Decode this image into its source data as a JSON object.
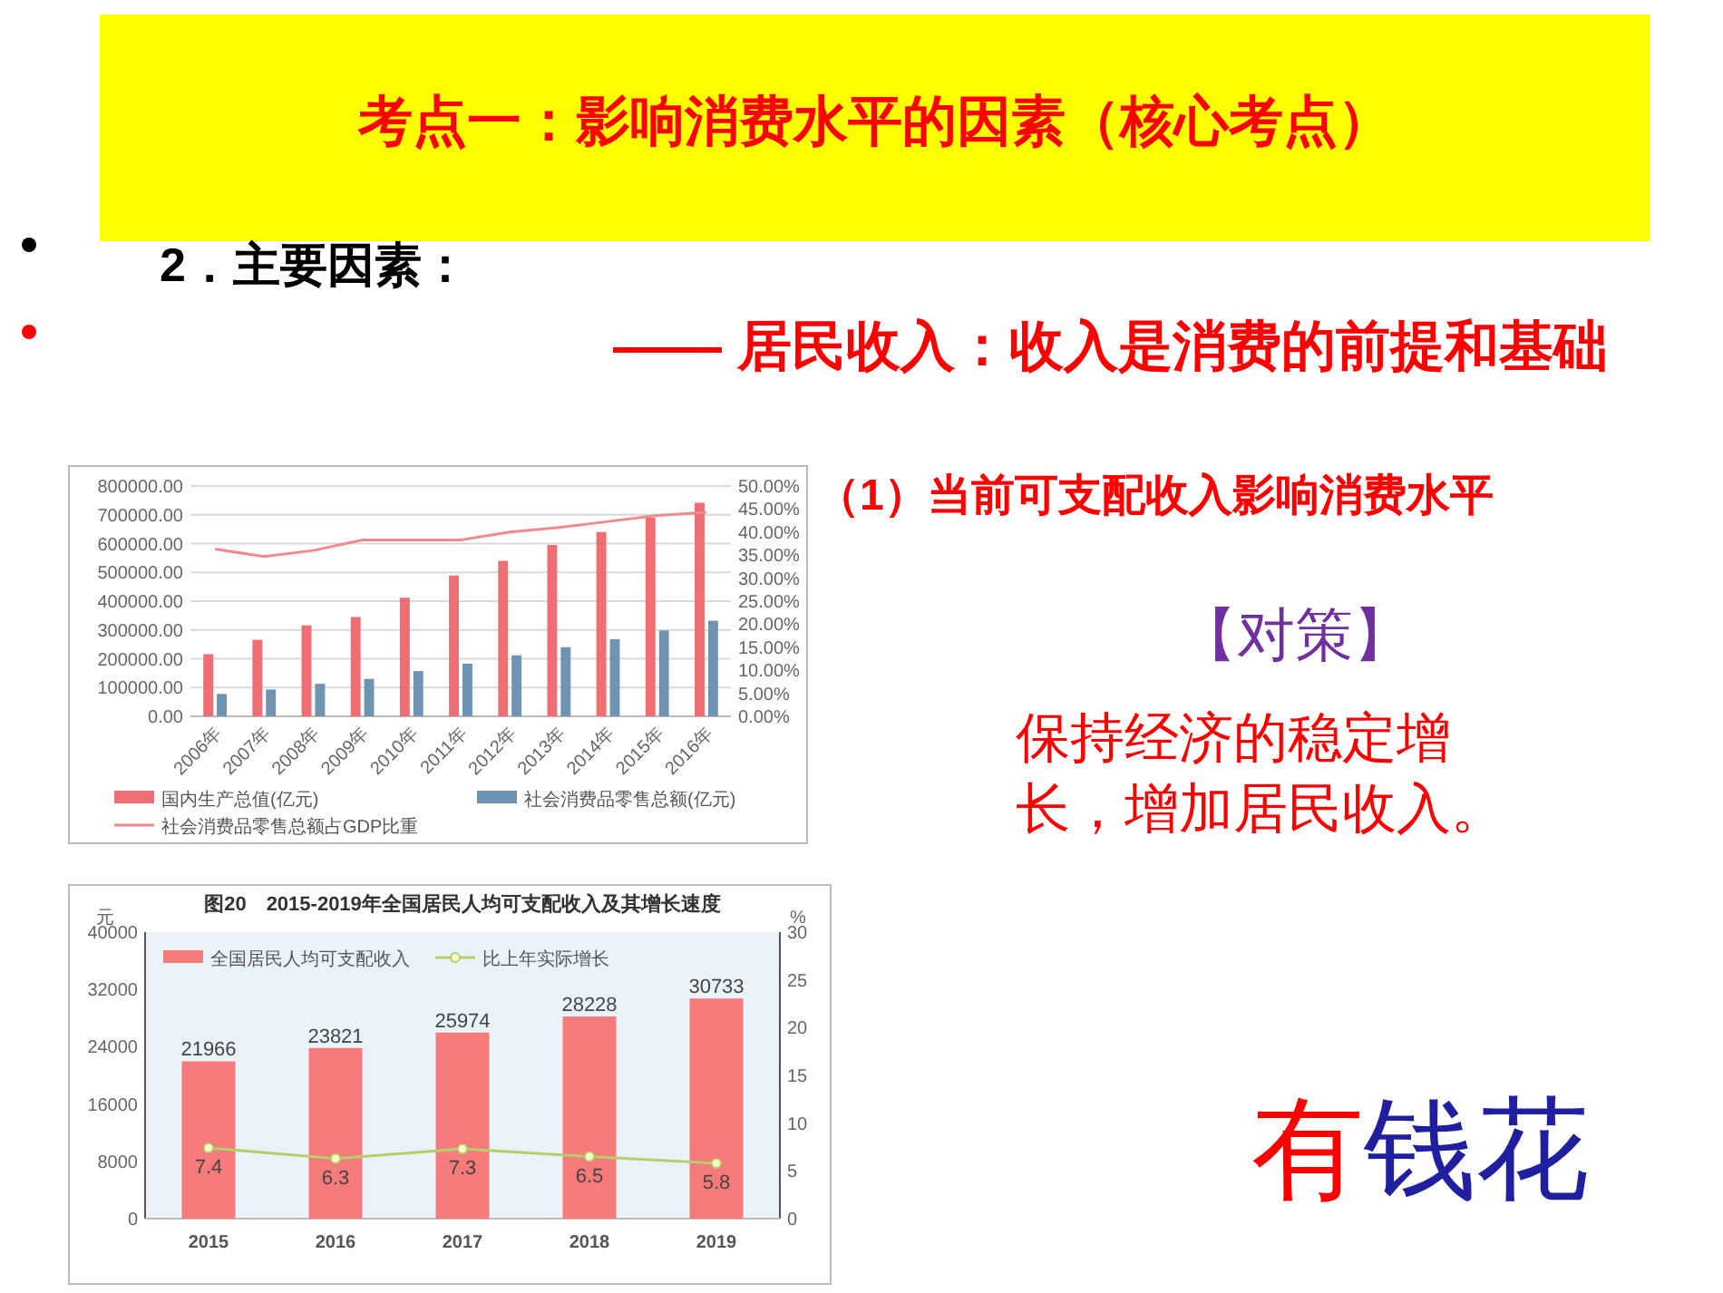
{
  "chart_data": [
    {
      "type": "other",
      "annotations": [
        "考点一：影响消费水平的因素（核心考点）",
        "2．主要因素：",
        "—— 居民收入：收入是消费的前提和基础",
        "（1）当前可支配收入影响消费水平",
        "【对策】",
        "保持经济的稳定增长，增加居民收入。",
        "有钱花"
      ]
    },
    {
      "type": "bar",
      "categories": [
        "2006年",
        "2007年",
        "2008年",
        "2009年",
        "2010年",
        "2011年",
        "2012年",
        "2013年",
        "2014年",
        "2015年",
        "2016年"
      ],
      "ylim": [
        0,
        800000
      ],
      "yticks": [
        {
          "value": 0,
          "label": "0.00"
        },
        {
          "value": 100000,
          "label": "100000.00"
        },
        {
          "value": 200000,
          "label": "200000.00"
        },
        {
          "value": 300000,
          "label": "300000.00"
        },
        {
          "value": 400000,
          "label": "400000.00"
        },
        {
          "value": 500000,
          "label": "500000.00"
        },
        {
          "value": 600000,
          "label": "600000.00"
        },
        {
          "value": 700000,
          "label": "700000.00"
        },
        {
          "value": 800000,
          "label": "800000.00"
        }
      ],
      "y2lim": [
        0,
        50
      ],
      "y2ticks": [
        {
          "value": 0,
          "label": "0.00%"
        },
        {
          "value": 5,
          "label": "5.00%"
        },
        {
          "value": 10,
          "label": "10.00%"
        },
        {
          "value": 15,
          "label": "15.00%"
        },
        {
          "value": 20,
          "label": "20.00%"
        },
        {
          "value": 25,
          "label": "25.00%"
        },
        {
          "value": 30,
          "label": "30.00%"
        },
        {
          "value": 35,
          "label": "35.00%"
        },
        {
          "value": 40,
          "label": "40.00%"
        },
        {
          "value": 45,
          "label": "45.00%"
        },
        {
          "value": 50,
          "label": "50.00%"
        }
      ],
      "grid": "y",
      "legend": "bottom",
      "series": [
        {
          "name": "国内生产总值(亿元)",
          "type": "bar",
          "color": "#ee6e73",
          "values": [
            216000,
            266000,
            316000,
            345000,
            412000,
            489000,
            540000,
            595000,
            640000,
            690000,
            742000
          ]
        },
        {
          "name": "社会消费品零售总额(亿元)",
          "type": "bar",
          "color": "#6f93b3",
          "values": [
            78000,
            93000,
            113000,
            130000,
            157000,
            183000,
            212000,
            240000,
            268000,
            298000,
            332000
          ]
        },
        {
          "name": "社会消费品零售总额占GDP比重",
          "type": "line",
          "axis": "y2",
          "color": "#f08a8e",
          "values": [
            36.3,
            34.7,
            36,
            38.3,
            38.3,
            38.3,
            40,
            41,
            42.3,
            43.6,
            44.3
          ]
        }
      ]
    },
    {
      "type": "bar",
      "title": "图20　2015-2019年全国居民人均可支配收入及其增长速度",
      "ylabel": "元",
      "y2label": "%",
      "categories": [
        "2015",
        "2016",
        "2017",
        "2018",
        "2019"
      ],
      "ylim": [
        0,
        40000
      ],
      "yticks": [
        0,
        8000,
        16000,
        24000,
        32000,
        40000
      ],
      "y2lim": [
        0,
        30
      ],
      "y2ticks": [
        0,
        5,
        10,
        15,
        20,
        25,
        30
      ],
      "grid": false,
      "legend": "top left",
      "data_labels": true,
      "series": [
        {
          "name": "全国居民人均可支配收入",
          "type": "bar",
          "color": "#f77b7b",
          "values": [
            21966,
            23821,
            25974,
            28228,
            30733
          ]
        },
        {
          "name": "比上年实际增长",
          "type": "line",
          "axis": "y2",
          "color": "#b5cf6b",
          "marker": "circle",
          "values": [
            7.4,
            6.3,
            7.3,
            6.5,
            5.8
          ]
        }
      ]
    }
  ]
}
